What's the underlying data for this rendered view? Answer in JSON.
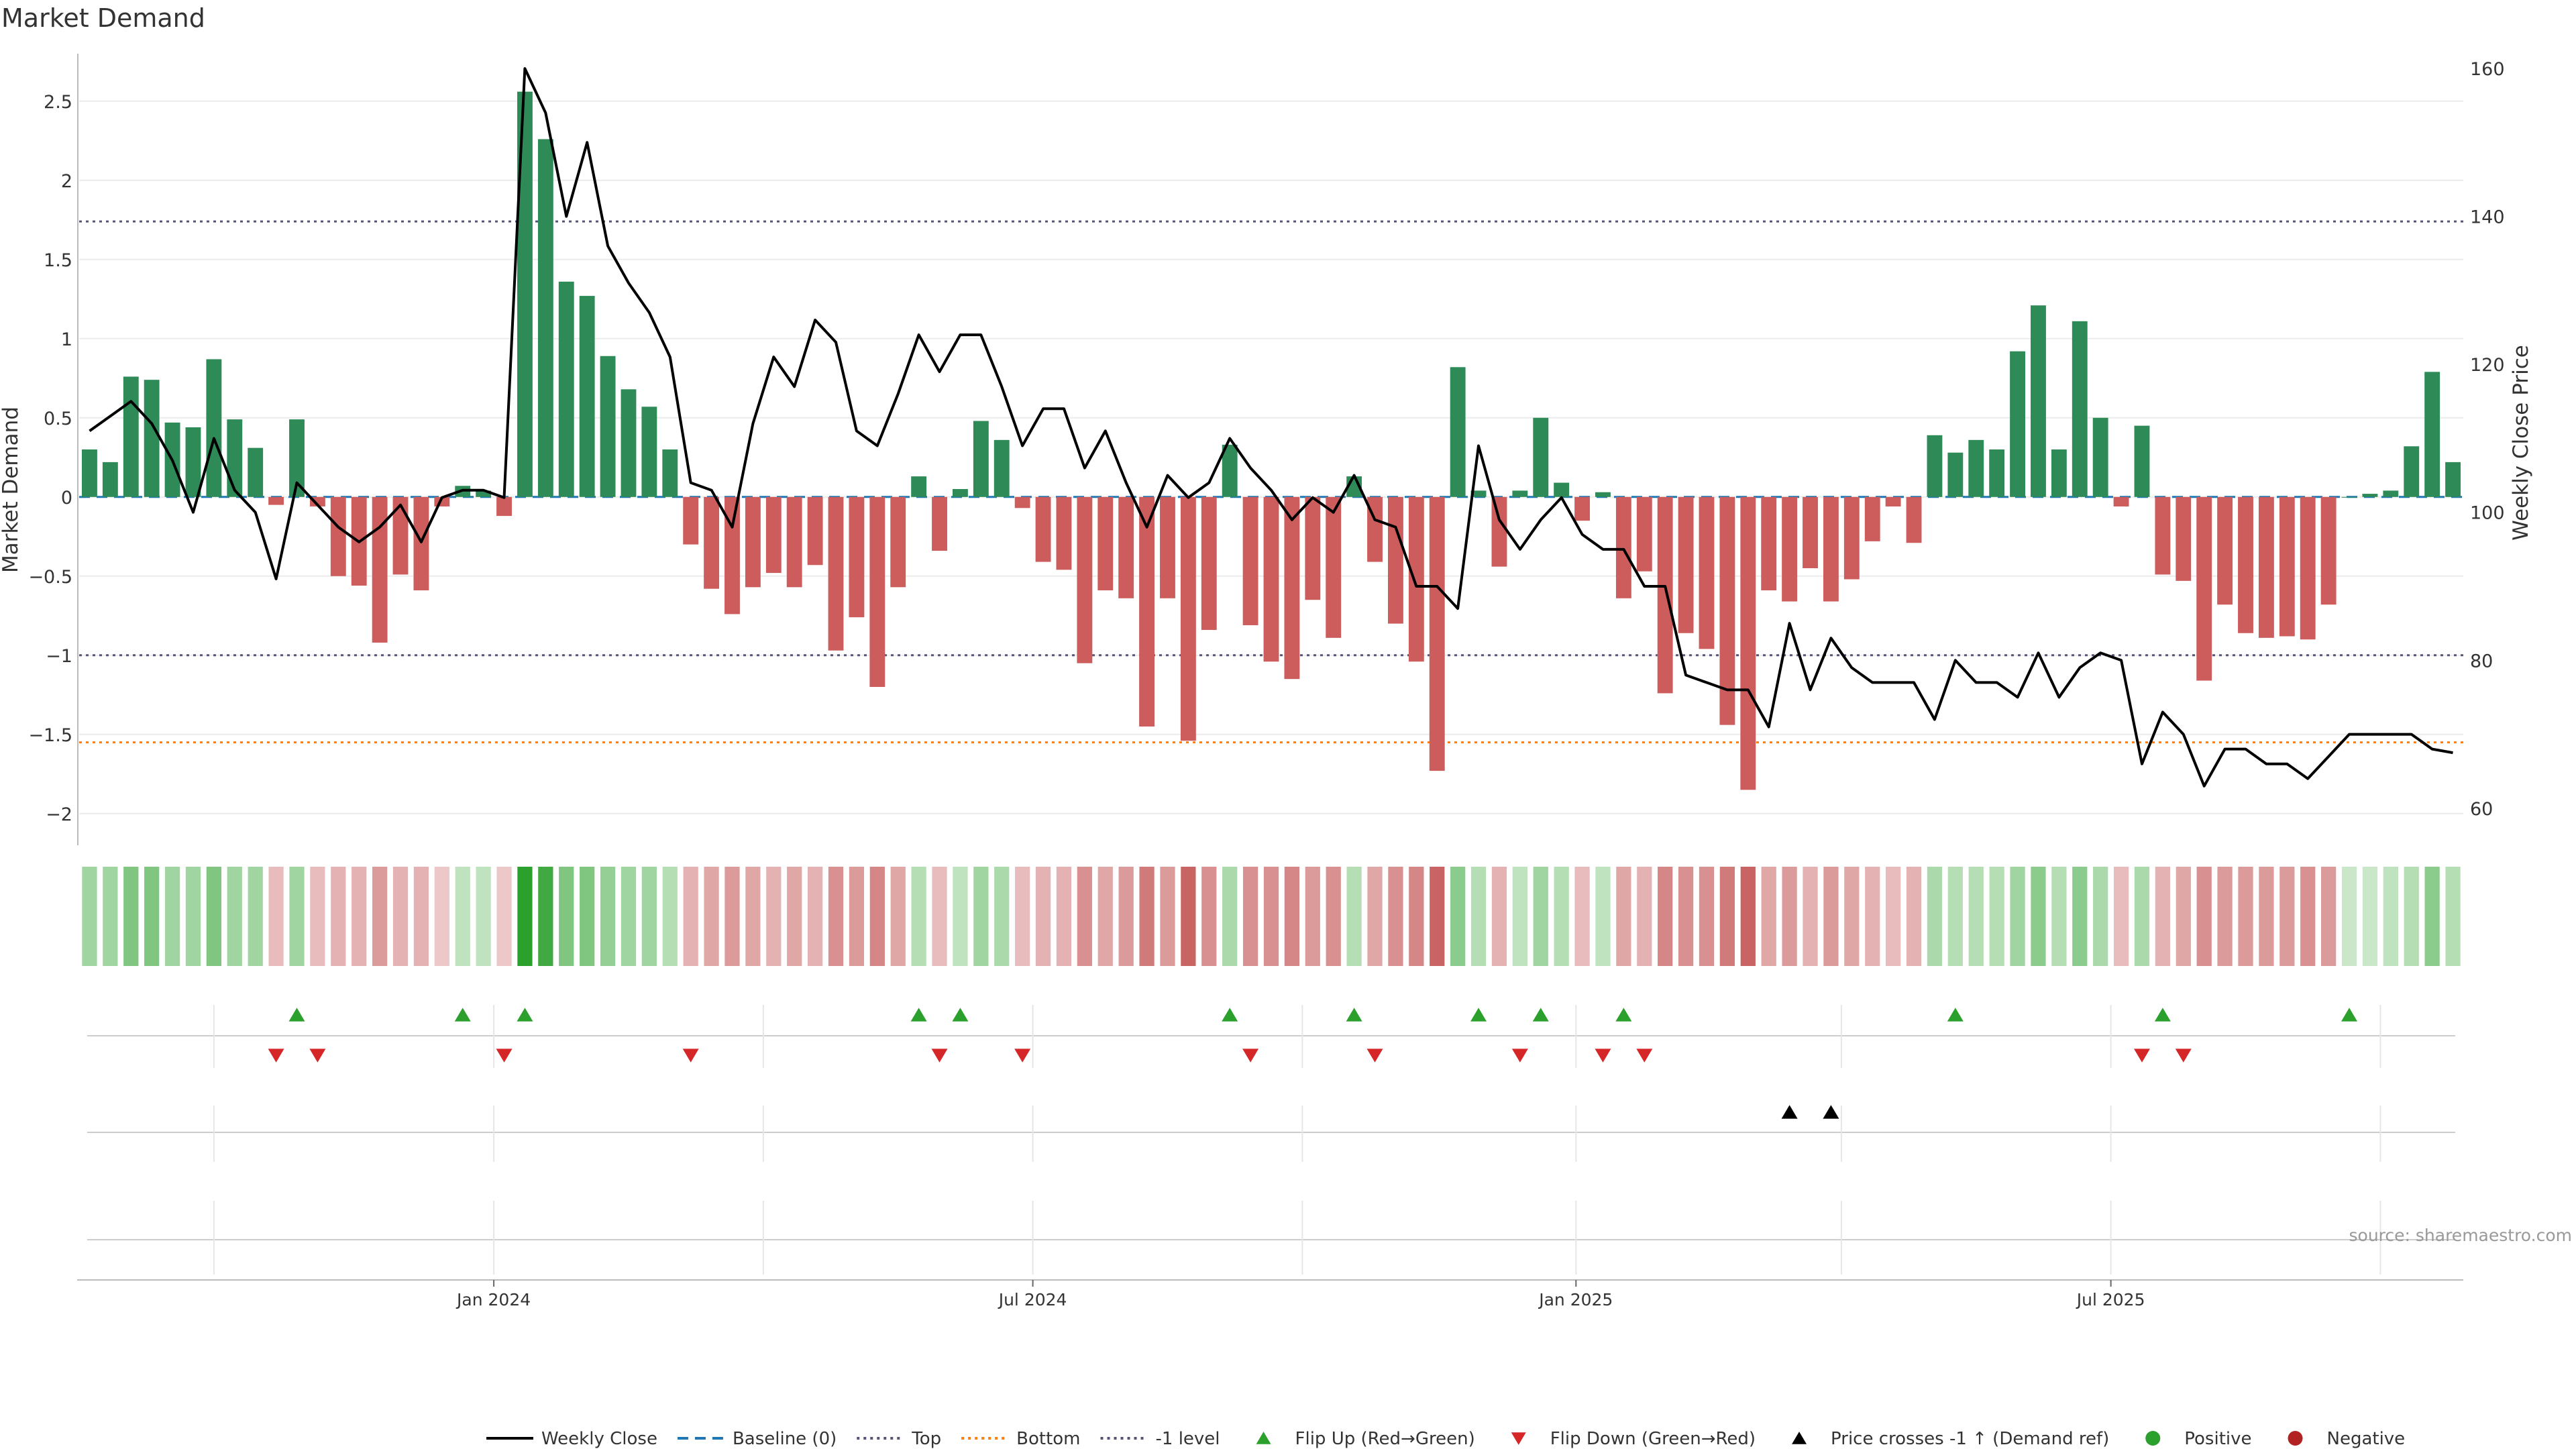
{
  "title": "Market Demand",
  "source": "source: sharemaestro.com",
  "colors": {
    "positive_bar": "#2e8b57",
    "negative_bar": "#cd5c5c",
    "price_line": "#000000",
    "baseline": "#1f77b4",
    "top_line": "#555577",
    "bottom_line": "#ff7f0e",
    "minus_one_line": "#555577",
    "flip_up": "#2ca02c",
    "flip_down": "#d62728",
    "cross_marker": "#000000",
    "positive_dot": "#2ca02c",
    "negative_dot": "#b22222"
  },
  "chart_data": {
    "type": "bar",
    "title": "Market Demand",
    "ylabel": "Market Demand",
    "y2label": "Weekly Close Price",
    "ylim": [
      -2.2,
      2.8
    ],
    "y2lim": [
      55,
      162
    ],
    "yticks": [
      "2.5",
      "2",
      "1.5",
      "1",
      "0.5",
      "0",
      "−0.5",
      "−1",
      "−1.5",
      "−2"
    ],
    "y2ticks": [
      "160",
      "140",
      "120",
      "100",
      "80",
      "60"
    ],
    "xticks": [
      {
        "label": "Jan 2024",
        "index": 19.5
      },
      {
        "label": "Jul 2024",
        "index": 45.5
      },
      {
        "label": "Jan 2025",
        "index": 71.7
      },
      {
        "label": "Jul 2025",
        "index": 97.5
      }
    ],
    "reference_levels": {
      "baseline": 0,
      "top": 1.74,
      "bottom": -1.55,
      "minus_one": -1.0
    },
    "demand": [
      0.3,
      0.22,
      0.76,
      0.74,
      0.47,
      0.44,
      0.87,
      0.49,
      0.31,
      -0.05,
      0.49,
      -0.06,
      -0.5,
      -0.56,
      -0.92,
      -0.49,
      -0.59,
      -0.06,
      0.07,
      0.04,
      -0.12,
      2.56,
      2.26,
      1.36,
      1.27,
      0.89,
      0.68,
      0.57,
      0.3,
      -0.3,
      -0.58,
      -0.74,
      -0.57,
      -0.48,
      -0.57,
      -0.43,
      -0.97,
      -0.76,
      -1.2,
      -0.57,
      0.13,
      -0.34,
      0.05,
      0.48,
      0.36,
      -0.07,
      -0.41,
      -0.46,
      -1.05,
      -0.59,
      -0.64,
      -1.45,
      -0.64,
      -1.54,
      -0.84,
      0.33,
      -0.81,
      -1.04,
      -1.15,
      -0.65,
      -0.89,
      0.13,
      -0.41,
      -0.8,
      -1.04,
      -1.73,
      0.82,
      0.04,
      -0.44,
      0.04,
      0.5,
      0.09,
      -0.15,
      0.03,
      -0.64,
      -0.47,
      -1.24,
      -0.86,
      -0.96,
      -1.44,
      -1.85,
      -0.59,
      -0.66,
      -0.45,
      -0.66,
      -0.52,
      -0.28,
      -0.06,
      -0.29,
      0.39,
      0.28,
      0.36,
      0.3,
      0.92,
      1.21,
      0.3,
      1.11,
      0.5,
      -0.06,
      0.45,
      -0.49,
      -0.53,
      -1.16,
      -0.68,
      -0.86,
      -0.89,
      -0.88,
      -0.9,
      -0.68,
      0.0,
      0.02,
      0.04,
      0.32,
      0.79,
      0.22
    ],
    "price": [
      111,
      113,
      115,
      112,
      107,
      100,
      110,
      103,
      100,
      91,
      104,
      101,
      98,
      96,
      98,
      101,
      96,
      102,
      103,
      103,
      102,
      160,
      154,
      140,
      150,
      136,
      131,
      127,
      121,
      104,
      103,
      98,
      112,
      121,
      117,
      126,
      123,
      111,
      109,
      116,
      124,
      119,
      124,
      124,
      117,
      109,
      114,
      114,
      106,
      111,
      104,
      98,
      105,
      102,
      104,
      110,
      106,
      103,
      99,
      102,
      100,
      105,
      99,
      98,
      90,
      90,
      87,
      109,
      99,
      95,
      99,
      102,
      97,
      95,
      95,
      90,
      90,
      78,
      77,
      76,
      76,
      71,
      85,
      76,
      83,
      79,
      77,
      77,
      77,
      72,
      80,
      77,
      77,
      75,
      81,
      75,
      79,
      81,
      80,
      66,
      73,
      70,
      63,
      68,
      68,
      66,
      66,
      64,
      67,
      70,
      70,
      70,
      70,
      68,
      67.5
    ]
  },
  "strip": {
    "intensity": [
      0.45,
      0.45,
      0.6,
      0.6,
      0.45,
      0.45,
      0.6,
      0.45,
      0.45,
      0.3,
      0.45,
      0.3,
      0.35,
      0.35,
      0.45,
      0.35,
      0.35,
      0.25,
      0.3,
      0.3,
      0.25,
      1.0,
      0.9,
      0.6,
      0.6,
      0.5,
      0.45,
      0.45,
      0.35,
      0.35,
      0.4,
      0.45,
      0.4,
      0.35,
      0.4,
      0.35,
      0.5,
      0.45,
      0.55,
      0.4,
      0.35,
      0.3,
      0.3,
      0.45,
      0.4,
      0.3,
      0.35,
      0.35,
      0.5,
      0.4,
      0.45,
      0.6,
      0.45,
      0.7,
      0.5,
      0.4,
      0.5,
      0.5,
      0.55,
      0.45,
      0.5,
      0.35,
      0.4,
      0.5,
      0.55,
      0.7,
      0.55,
      0.35,
      0.35,
      0.3,
      0.45,
      0.35,
      0.3,
      0.3,
      0.4,
      0.35,
      0.55,
      0.5,
      0.5,
      0.6,
      0.7,
      0.4,
      0.45,
      0.35,
      0.45,
      0.4,
      0.35,
      0.3,
      0.35,
      0.4,
      0.35,
      0.35,
      0.35,
      0.45,
      0.55,
      0.35,
      0.55,
      0.4,
      0.3,
      0.4,
      0.35,
      0.4,
      0.5,
      0.45,
      0.45,
      0.45,
      0.45,
      0.5,
      0.45,
      0.25,
      0.25,
      0.3,
      0.35,
      0.55,
      0.35
    ]
  },
  "events": {
    "flip_up": [
      10,
      18,
      21,
      40,
      42,
      55,
      61,
      67,
      70,
      74,
      90,
      100,
      109
    ],
    "flip_down": [
      9,
      11,
      20,
      29,
      41,
      45,
      56,
      62,
      69,
      73,
      75,
      99,
      101
    ],
    "price_cross": [
      82,
      84
    ],
    "period_dividers": [
      6,
      19.5,
      32.5,
      45.5,
      58.5,
      71.7,
      84.5,
      97.5,
      110.5
    ]
  },
  "legend": [
    {
      "key": "weekly-close",
      "label": "Weekly Close",
      "style": "line-solid"
    },
    {
      "key": "baseline",
      "label": "Baseline (0)",
      "style": "line-dash-blue"
    },
    {
      "key": "top",
      "label": "Top",
      "style": "line-dot-grey"
    },
    {
      "key": "bottom",
      "label": "Bottom",
      "style": "line-dot-orange"
    },
    {
      "key": "minus-one",
      "label": "-1 level",
      "style": "line-dot-grey"
    },
    {
      "key": "flip-up",
      "label": "Flip Up (Red→Green)",
      "style": "tri-up-green"
    },
    {
      "key": "flip-down",
      "label": "Flip Down (Green→Red)",
      "style": "tri-down-red"
    },
    {
      "key": "price-cross",
      "label": "Price crosses -1 ↑ (Demand ref)",
      "style": "tri-up-black"
    },
    {
      "key": "positive",
      "label": "Positive",
      "style": "dot-green"
    },
    {
      "key": "negative",
      "label": "Negative",
      "style": "dot-red"
    }
  ]
}
